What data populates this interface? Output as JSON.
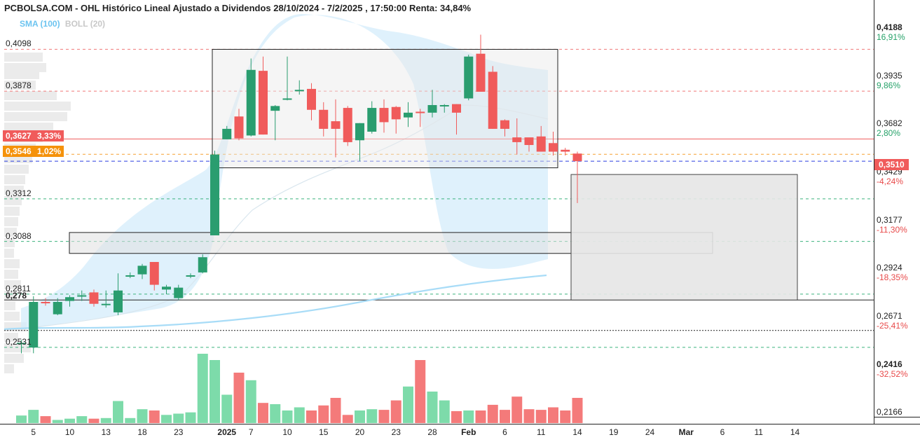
{
  "title": "PCBOLSA.COM - OHL Histórico Lineal Ajustado a Dividendos 28/10/2024 - 7/2/2025 , 17:50:00 Renta: 34,84%",
  "indicators": {
    "sma": "SMA (100)",
    "boll": "BOLL (20)"
  },
  "colors": {
    "up": "#2a9d6f",
    "down": "#f05b5b",
    "vol_up": "#7ddbaa",
    "vol_down": "#f47a7a",
    "sma": "#a8dcf7",
    "boll_fill": "#d4ecfb"
  },
  "left_levels": [
    {
      "label": "0,4098",
      "value": 0.4098
    },
    {
      "label": "0,3878",
      "value": 0.3878
    },
    {
      "label": "0,3312",
      "value": 0.3312
    },
    {
      "label": "0,3088",
      "value": 0.3088
    },
    {
      "label": "0,2811",
      "value": 0.2811
    },
    {
      "label": "0,278",
      "value": 0.278
    },
    {
      "label": "0,2531",
      "value": 0.2531
    }
  ],
  "right_axis": [
    {
      "price": "0,4188",
      "pct": "16,91%",
      "value": 0.4188,
      "dir": "pos"
    },
    {
      "price": "0,3935",
      "pct": "9,86%",
      "value": 0.3935,
      "dir": "pos"
    },
    {
      "price": "0,3682",
      "pct": "2,80%",
      "value": 0.3682,
      "dir": "pos"
    },
    {
      "price": "0,3429",
      "pct": "-4,24%",
      "value": 0.3429,
      "dir": "neg"
    },
    {
      "price": "0,3177",
      "pct": "-11,30%",
      "value": 0.3177,
      "dir": "neg"
    },
    {
      "price": "0,2924",
      "pct": "-18,35%",
      "value": 0.2924,
      "dir": "neg"
    },
    {
      "price": "0,2671",
      "pct": "-25,41%",
      "value": 0.2671,
      "dir": "neg"
    },
    {
      "price": "0,2416",
      "pct": "-32,52%",
      "value": 0.2416,
      "dir": "neg"
    },
    {
      "price": "0,2166",
      "pct": "",
      "value": 0.2166,
      "dir": "neg"
    }
  ],
  "tags": {
    "red": {
      "price": "0,3627",
      "pct": "3,33%",
      "value": 0.3627
    },
    "orange": {
      "price": "0,3546",
      "pct": "1,02%",
      "value": 0.3546
    },
    "last": {
      "price": "0,3510",
      "value": 0.351
    }
  },
  "x_labels": [
    {
      "text": "5",
      "i": 1,
      "bold": false
    },
    {
      "text": "10",
      "i": 4,
      "bold": false
    },
    {
      "text": "13",
      "i": 7,
      "bold": false
    },
    {
      "text": "18",
      "i": 10,
      "bold": false
    },
    {
      "text": "23",
      "i": 13,
      "bold": false
    },
    {
      "text": "2025",
      "i": 17,
      "bold": true
    },
    {
      "text": "7",
      "i": 19,
      "bold": false
    },
    {
      "text": "10",
      "i": 22,
      "bold": false
    },
    {
      "text": "15",
      "i": 25,
      "bold": false
    },
    {
      "text": "20",
      "i": 28,
      "bold": false
    },
    {
      "text": "23",
      "i": 31,
      "bold": false
    },
    {
      "text": "28",
      "i": 34,
      "bold": false
    },
    {
      "text": "Feb",
      "i": 37,
      "bold": true
    },
    {
      "text": "6",
      "i": 40,
      "bold": false
    },
    {
      "text": "11",
      "i": 43,
      "bold": false
    },
    {
      "text": "14",
      "i": 46,
      "bold": false
    },
    {
      "text": "19",
      "i": 49,
      "bold": false
    },
    {
      "text": "24",
      "i": 52,
      "bold": false
    },
    {
      "text": "Mar",
      "i": 55,
      "bold": true
    },
    {
      "text": "6",
      "i": 58,
      "bold": false
    },
    {
      "text": "11",
      "i": 61,
      "bold": false
    },
    {
      "text": "14",
      "i": 64,
      "bold": false
    }
  ],
  "chart_data": {
    "type": "candlestick",
    "y_range": [
      0.2166,
      0.4188
    ],
    "ohlc": [
      [
        0.2555,
        0.257,
        0.25,
        0.2555
      ],
      [
        0.253,
        0.28,
        0.25,
        0.277
      ],
      [
        0.277,
        0.279,
        0.275,
        0.2765
      ],
      [
        0.2705,
        0.279,
        0.27,
        0.277
      ],
      [
        0.2775,
        0.2805,
        0.2745,
        0.2795
      ],
      [
        0.28,
        0.283,
        0.2775,
        0.2805
      ],
      [
        0.282,
        0.2835,
        0.2745,
        0.276
      ],
      [
        0.2755,
        0.283,
        0.274,
        0.276
      ],
      [
        0.2715,
        0.292,
        0.27,
        0.283
      ],
      [
        0.291,
        0.2925,
        0.2895,
        0.291
      ],
      [
        0.2915,
        0.297,
        0.289,
        0.296
      ],
      [
        0.298,
        0.298,
        0.283,
        0.286
      ],
      [
        0.2835,
        0.286,
        0.281,
        0.285
      ],
      [
        0.279,
        0.286,
        0.278,
        0.2845
      ],
      [
        0.291,
        0.292,
        0.2895,
        0.291
      ],
      [
        0.2925,
        0.302,
        0.292,
        0.3005
      ],
      [
        0.312,
        0.3565,
        0.312,
        0.3545
      ],
      [
        0.3625,
        0.3695,
        0.3625,
        0.368
      ],
      [
        0.3745,
        0.3785,
        0.362,
        0.363
      ],
      [
        0.3645,
        0.405,
        0.364,
        0.399
      ],
      [
        0.3985,
        0.406,
        0.365,
        0.365
      ],
      [
        0.3775,
        0.3805,
        0.362,
        0.38
      ],
      [
        0.3835,
        0.406,
        0.383,
        0.384
      ],
      [
        0.3885,
        0.3935,
        0.386,
        0.3885
      ],
      [
        0.389,
        0.392,
        0.3725,
        0.378
      ],
      [
        0.378,
        0.382,
        0.364,
        0.368
      ],
      [
        0.372,
        0.3835,
        0.353,
        0.368
      ],
      [
        0.379,
        0.38,
        0.359,
        0.361
      ],
      [
        0.362,
        0.371,
        0.351,
        0.371
      ],
      [
        0.3665,
        0.3825,
        0.3655,
        0.379
      ],
      [
        0.379,
        0.3835,
        0.366,
        0.3715
      ],
      [
        0.3795,
        0.38,
        0.3655,
        0.373
      ],
      [
        0.374,
        0.382,
        0.369,
        0.3765
      ],
      [
        0.377,
        0.3785,
        0.369,
        0.3765
      ],
      [
        0.3765,
        0.3885,
        0.374,
        0.3805
      ],
      [
        0.38,
        0.381,
        0.3765,
        0.3805
      ],
      [
        0.381,
        0.381,
        0.365,
        0.3765
      ],
      [
        0.384,
        0.407,
        0.383,
        0.406
      ],
      [
        0.4075,
        0.4175,
        0.3875,
        0.3875
      ],
      [
        0.398,
        0.401,
        0.368,
        0.368
      ],
      [
        0.3725,
        0.373,
        0.364,
        0.368
      ],
      [
        0.3635,
        0.3735,
        0.3545,
        0.361
      ],
      [
        0.3635,
        0.3625,
        0.356,
        0.3595
      ],
      [
        0.364,
        0.3695,
        0.356,
        0.356
      ],
      [
        0.3605,
        0.3665,
        0.354,
        0.356
      ],
      [
        0.357,
        0.358,
        0.354,
        0.356
      ],
      [
        0.355,
        0.356,
        0.329,
        0.351
      ]
    ],
    "volume": [
      0.12,
      0.21,
      0.11,
      0.05,
      0.07,
      0.11,
      0.07,
      0.08,
      0.35,
      0.08,
      0.22,
      0.2,
      0.13,
      0.15,
      0.17,
      1.1,
      1.0,
      0.45,
      0.8,
      0.68,
      0.32,
      0.3,
      0.2,
      0.25,
      0.2,
      0.28,
      0.4,
      0.13,
      0.2,
      0.22,
      0.21,
      0.36,
      0.58,
      1.0,
      0.5,
      0.36,
      0.19,
      0.2,
      0.2,
      0.29,
      0.21,
      0.42,
      0.22,
      0.21,
      0.25,
      0.2,
      0.4
    ]
  }
}
